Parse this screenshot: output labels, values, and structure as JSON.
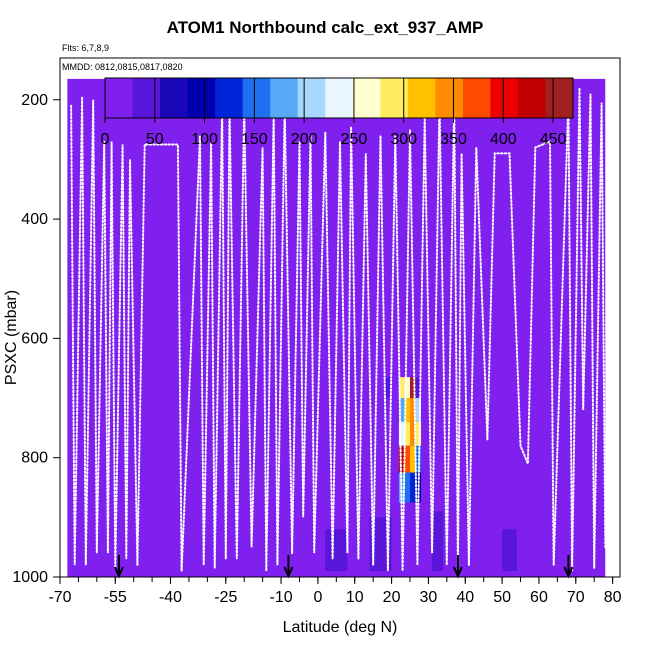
{
  "chart_data": {
    "type": "heatmap",
    "title": "ATOM1 Northbound calc_ext_937_AMP",
    "subtitle_flights": "Flts: 6,7,8,9",
    "subtitle_dates": "MMDD: 0812,0815,0817,0820",
    "xlabel": "Latitude (deg N)",
    "ylabel": "PSXC (mbar)",
    "xlim": [
      -70,
      82
    ],
    "ylim": [
      1000,
      130
    ],
    "y_reversed": true,
    "x_ticks": [
      -70,
      -55,
      -40,
      -25,
      -10,
      0,
      10,
      20,
      30,
      40,
      50,
      60,
      70,
      80
    ],
    "y_ticks": [
      200,
      400,
      600,
      800,
      1000
    ],
    "colorbar": {
      "ticks": [
        0,
        50,
        100,
        150,
        200,
        250,
        300,
        350,
        400,
        450
      ],
      "range": [
        0,
        470
      ],
      "colors": [
        "#8020ee",
        "#5a16d8",
        "#1a08b8",
        "#0000b0",
        "#0024d8",
        "#1e70f0",
        "#58a8f8",
        "#a8d8ff",
        "#eaf6ff",
        "#ffffd0",
        "#ffec60",
        "#ffc000",
        "#ff8c00",
        "#ff4a00",
        "#ee0000",
        "#c00000",
        "#a02020"
      ]
    },
    "background_color": "#8020ee",
    "data_extent": {
      "lat": [
        -68,
        78
      ],
      "pres_top": 165
    },
    "cells": [
      {
        "lat": [
          22,
          23.5
        ],
        "pres": [
          665,
          700
        ],
        "value": 300
      },
      {
        "lat": [
          23.5,
          25
        ],
        "pres": [
          665,
          700
        ],
        "value": 250
      },
      {
        "lat": [
          25,
          26.5
        ],
        "pres": [
          665,
          700
        ],
        "value": 450
      },
      {
        "lat": [
          26.5,
          28
        ],
        "pres": [
          665,
          700
        ],
        "value": 40
      },
      {
        "lat": [
          22,
          23.5
        ],
        "pres": [
          700,
          740
        ],
        "value": 180
      },
      {
        "lat": [
          23.5,
          25
        ],
        "pres": [
          700,
          740
        ],
        "value": 330
      },
      {
        "lat": [
          25,
          26.5
        ],
        "pres": [
          700,
          740
        ],
        "value": 350
      },
      {
        "lat": [
          26.5,
          28
        ],
        "pres": [
          700,
          740
        ],
        "value": 210
      },
      {
        "lat": [
          22,
          23.5
        ],
        "pres": [
          740,
          780
        ],
        "value": 230
      },
      {
        "lat": [
          23.5,
          25
        ],
        "pres": [
          740,
          780
        ],
        "value": 280
      },
      {
        "lat": [
          25,
          26.5
        ],
        "pres": [
          740,
          780
        ],
        "value": 340
      },
      {
        "lat": [
          26.5,
          28
        ],
        "pres": [
          740,
          780
        ],
        "value": 300
      },
      {
        "lat": [
          22,
          23.5
        ],
        "pres": [
          780,
          825
        ],
        "value": 420
      },
      {
        "lat": [
          23.5,
          25
        ],
        "pres": [
          780,
          825
        ],
        "value": 380
      },
      {
        "lat": [
          25,
          26.5
        ],
        "pres": [
          780,
          825
        ],
        "value": 330
      },
      {
        "lat": [
          26.5,
          28
        ],
        "pres": [
          780,
          825
        ],
        "value": 140
      },
      {
        "lat": [
          22,
          23.5
        ],
        "pres": [
          825,
          875
        ],
        "value": 190
      },
      {
        "lat": [
          23.5,
          25
        ],
        "pres": [
          825,
          875
        ],
        "value": 150
      },
      {
        "lat": [
          25,
          26.5
        ],
        "pres": [
          825,
          875
        ],
        "value": 120
      },
      {
        "lat": [
          26.5,
          28
        ],
        "pres": [
          825,
          875
        ],
        "value": 90
      },
      {
        "lat": [
          28,
          32
        ],
        "pres": [
          665,
          745
        ],
        "value": 15
      },
      {
        "lat": [
          18,
          20
        ],
        "pres": [
          665,
          700
        ],
        "value": 40
      },
      {
        "lat": [
          13,
          15
        ],
        "pres": [
          665,
          710
        ],
        "value": 20
      },
      {
        "lat": [
          -30,
          -26
        ],
        "pres": [
          880,
          980
        ],
        "value": 25
      },
      {
        "lat": [
          -62,
          -56
        ],
        "pres": [
          880,
          990
        ],
        "value": 20
      },
      {
        "lat": [
          50,
          54
        ],
        "pres": [
          920,
          990
        ],
        "value": 30
      },
      {
        "lat": [
          56,
          62
        ],
        "pres": [
          700,
          800
        ],
        "value": 25
      },
      {
        "lat": [
          2,
          8
        ],
        "pres": [
          920,
          990
        ],
        "value": 30
      },
      {
        "lat": [
          14,
          20
        ],
        "pres": [
          900,
          990
        ],
        "value": 30
      },
      {
        "lat": [
          31,
          34
        ],
        "pres": [
          890,
          990
        ],
        "value": 30
      },
      {
        "lat": [
          -12,
          -6
        ],
        "pres": [
          760,
          860
        ],
        "value": 22
      },
      {
        "lat": [
          -4,
          2
        ],
        "pres": [
          560,
          640
        ],
        "value": 18
      },
      {
        "lat": [
          40,
          46
        ],
        "pres": [
          820,
          920
        ],
        "value": 22
      },
      {
        "lat": [
          64,
          68
        ],
        "pres": [
          380,
          420
        ],
        "value": 20
      },
      {
        "lat": [
          -42,
          -38
        ],
        "pres": [
          880,
          940
        ],
        "value": 22
      },
      {
        "lat": [
          -50,
          -46
        ],
        "pres": [
          920,
          990
        ],
        "value": 25
      },
      {
        "lat": [
          10,
          14
        ],
        "pres": [
          800,
          880
        ],
        "value": 20
      }
    ],
    "flight_tracks": [
      [
        [
          -67,
          210
        ],
        [
          -66,
          980
        ],
        [
          -64,
          195
        ],
        [
          -63,
          980
        ],
        [
          -61,
          200
        ],
        [
          -60,
          960
        ],
        [
          -58,
          270
        ],
        [
          -57,
          960
        ],
        [
          -56,
          270
        ],
        [
          -55,
          985
        ],
        [
          -53,
          275
        ],
        [
          -52,
          970
        ],
        [
          -51,
          300
        ],
        [
          -49,
          980
        ],
        [
          -47,
          275
        ],
        [
          -38,
          275
        ],
        [
          -37,
          990
        ],
        [
          -32,
          260
        ],
        [
          -31,
          980
        ],
        [
          -29,
          270
        ],
        [
          -28,
          985
        ],
        [
          -26,
          210
        ],
        [
          -25,
          970
        ],
        [
          -24,
          210
        ],
        [
          -22,
          970
        ],
        [
          -20,
          210
        ],
        [
          -18,
          950
        ],
        [
          -15,
          280
        ],
        [
          -14,
          990
        ],
        [
          -12,
          220
        ],
        [
          -11,
          980
        ],
        [
          -9,
          210
        ],
        [
          -7,
          960
        ],
        [
          -5,
          270
        ],
        [
          -4,
          900
        ],
        [
          -2,
          260
        ],
        [
          -1,
          960
        ],
        [
          2,
          255
        ],
        [
          4,
          970
        ],
        [
          6,
          270
        ],
        [
          8,
          960
        ],
        [
          9,
          245
        ],
        [
          11,
          970
        ],
        [
          13,
          290
        ],
        [
          15,
          980
        ],
        [
          17,
          260
        ],
        [
          19,
          990
        ],
        [
          21,
          260
        ],
        [
          23,
          990
        ],
        [
          25,
          250
        ],
        [
          27,
          980
        ],
        [
          29,
          230
        ],
        [
          31,
          960
        ],
        [
          33,
          200
        ],
        [
          35,
          980
        ],
        [
          37,
          200
        ],
        [
          38,
          990
        ],
        [
          39,
          290
        ],
        [
          41,
          980
        ],
        [
          43,
          280
        ],
        [
          46,
          770
        ],
        [
          48,
          290
        ],
        [
          52,
          290
        ],
        [
          55,
          780
        ],
        [
          57,
          810
        ],
        [
          59,
          280
        ],
        [
          63,
          270
        ],
        [
          64,
          980
        ],
        [
          68,
          200
        ],
        [
          69,
          990
        ],
        [
          71,
          180
        ],
        [
          72,
          720
        ],
        [
          74,
          190
        ],
        [
          75,
          985
        ],
        [
          77,
          205
        ],
        [
          78,
          950
        ]
      ]
    ],
    "bottom_arrows_lat": [
      -54,
      -8,
      38,
      68
    ]
  }
}
